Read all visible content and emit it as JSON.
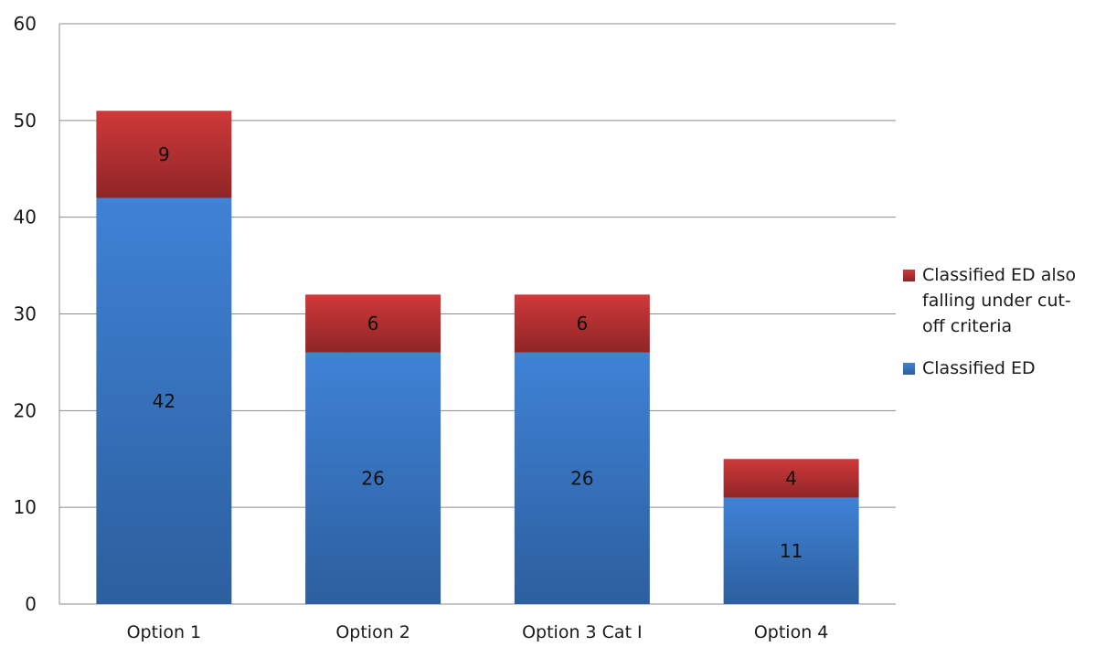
{
  "chart_data": {
    "type": "bar",
    "stacked": true,
    "categories": [
      "Option 1",
      "Option 2",
      "Option 3 Cat I",
      "Option 4"
    ],
    "series": [
      {
        "name": "Classified ED",
        "values": [
          42,
          26,
          26,
          11
        ],
        "color": "#3b7dd0"
      },
      {
        "name": "Classified ED also falling under cut-off criteria",
        "values": [
          9,
          6,
          6,
          4
        ],
        "color": "#c0393a"
      }
    ],
    "legend_lines": {
      "top_series": [
        "Classified ED also",
        "falling under cut-",
        "off criteria"
      ],
      "bottom_series": [
        "Classified ED"
      ]
    },
    "y_ticks": [
      "0",
      "10",
      "20",
      "30",
      "40",
      "50",
      "60"
    ],
    "ylim": [
      0,
      60
    ],
    "grid": true,
    "legend_position": "right",
    "colors": {
      "blue_top": "#3f82d6",
      "blue_bottom": "#2c5f9e",
      "red_top": "#d0393a",
      "red_bottom": "#8f2526",
      "grid": "#8c8c8c",
      "axis": "#8c8c8c"
    }
  }
}
